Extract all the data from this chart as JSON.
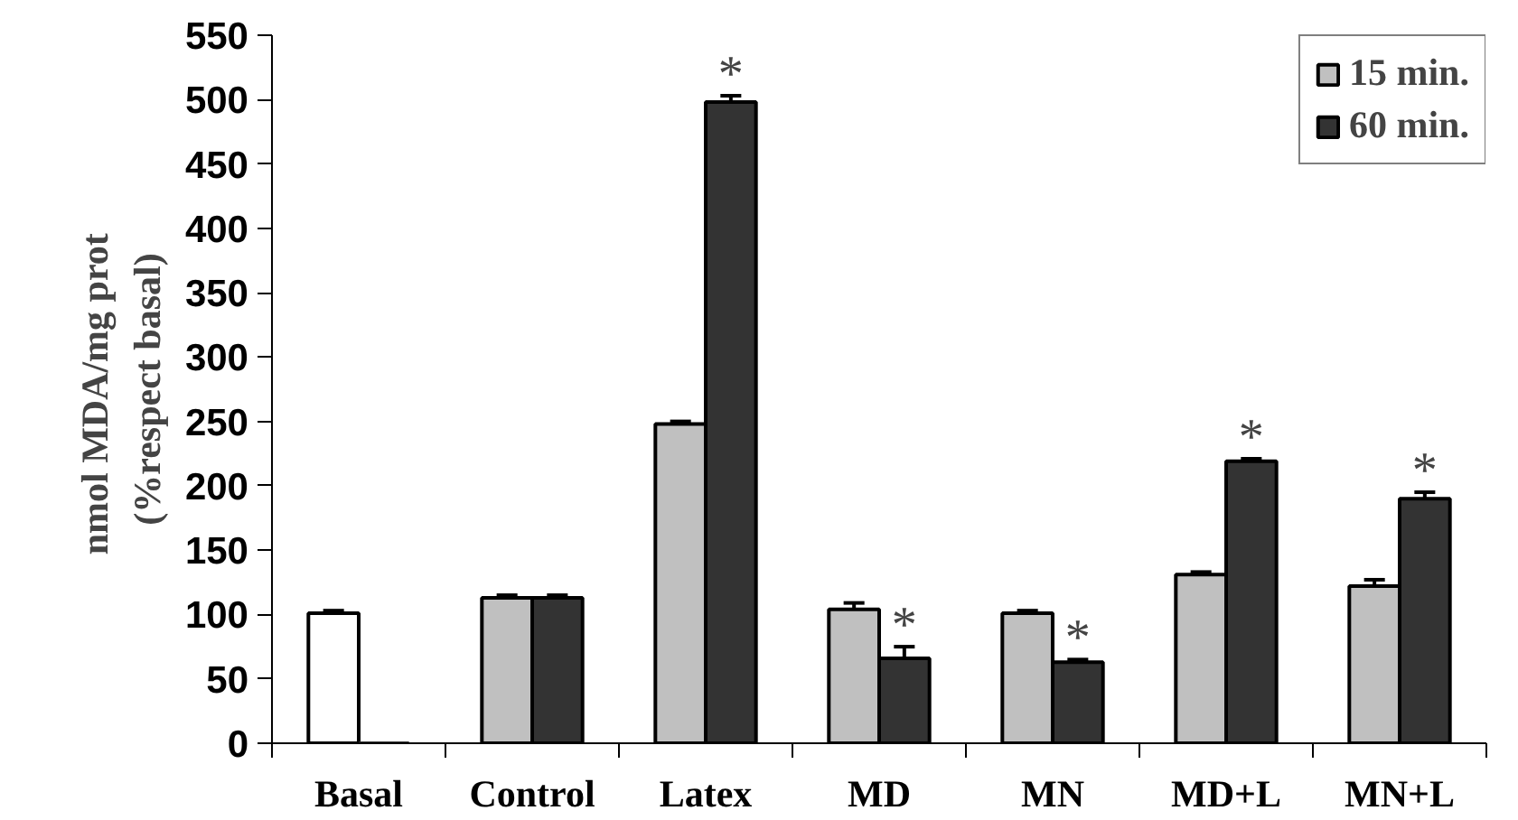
{
  "chart_data": {
    "type": "bar",
    "ylabel": "nmol MDA/mg  prot\n(%respect basal)",
    "categories": [
      "Basal",
      "Control",
      "Latex",
      "MD",
      "MN",
      "MD+L",
      "MN+L"
    ],
    "series": [
      {
        "name": "15 min.",
        "color": "#c0c0c0",
        "colors": [
          "#ffffff",
          "#c0c0c0",
          "#c0c0c0",
          "#c0c0c0",
          "#c0c0c0",
          "#c0c0c0",
          "#c0c0c0"
        ],
        "values": [
          101,
          113,
          248,
          104,
          101,
          131,
          122
        ],
        "errors": [
          [
            101,
            103
          ],
          [
            113,
            115
          ],
          [
            248,
            250
          ],
          [
            104,
            109
          ],
          [
            101,
            103
          ],
          [
            131,
            133
          ],
          [
            122,
            127
          ]
        ]
      },
      {
        "name": "60 min.",
        "color": "#333333",
        "values": [
          0,
          113,
          498,
          66,
          63,
          219,
          190
        ],
        "errors": [
          null,
          [
            113,
            115
          ],
          [
            498,
            503
          ],
          [
            66,
            75
          ],
          [
            63,
            65
          ],
          [
            219,
            221
          ],
          [
            190,
            195
          ]
        ]
      }
    ],
    "annotations": [
      {
        "text": "*",
        "x": "Latex",
        "y": 503
      },
      {
        "text": "*",
        "x": "MD",
        "y": 75
      },
      {
        "text": "*",
        "x": "MN",
        "y": 65
      },
      {
        "text": "*",
        "x": "MD+L",
        "y": 221
      },
      {
        "text": "*",
        "x": "MN+L",
        "y": 195
      }
    ],
    "ylim": [
      0,
      550
    ],
    "yticks": [
      0,
      50,
      100,
      150,
      200,
      250,
      300,
      350,
      400,
      450,
      500,
      550
    ],
    "legend": "top right",
    "grid": false
  }
}
